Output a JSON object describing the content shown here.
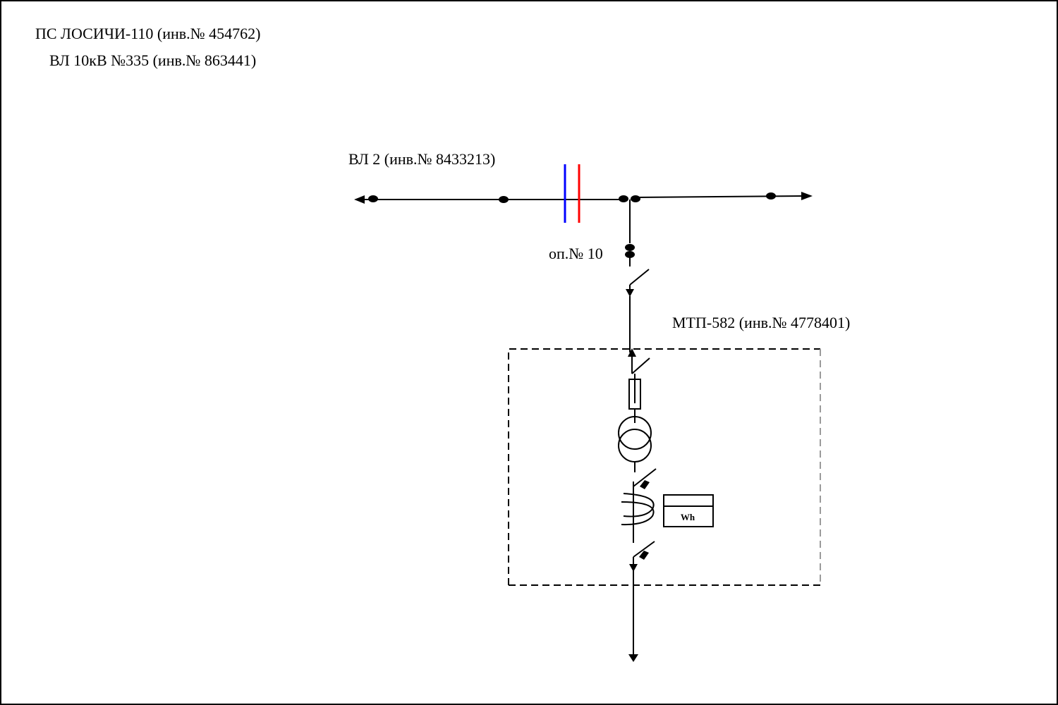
{
  "header": {
    "substation": "ПС ЛОСИЧИ-110 (инв.№ 454762)",
    "feeder": "ВЛ 10кВ №335 (инв.№ 863441)"
  },
  "line": {
    "label": "ВЛ 2 (инв.№ 8433213)"
  },
  "pole": {
    "label": "оп.№ 10"
  },
  "substation_block": {
    "label": "МТП-582 (инв.№ 4778401)",
    "meter_label": "Wh"
  },
  "colors": {
    "line": "#000000",
    "boundary_blue": "#0000ff",
    "boundary_red": "#ff0000",
    "frame_dash": "#000000",
    "frame_dash_right": "#9a9a9a"
  }
}
